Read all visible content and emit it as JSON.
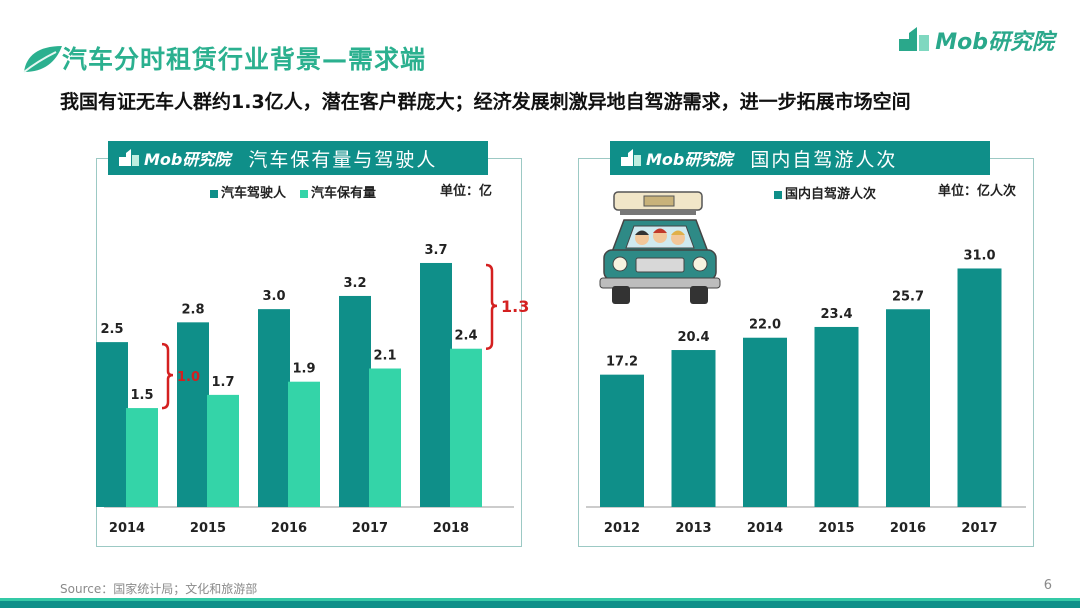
{
  "header": {
    "title": "汽车分时租赁行业背景—需求端",
    "subtitle": "我国有证无车人群约1.3亿人，潜在客户群庞大；经济发展刺激异地自驾游需求，进一步拓展市场空间",
    "brand": "Mob研究院"
  },
  "colors": {
    "dark_teal": "#0f8f89",
    "light_green": "#34d4a8",
    "red": "#d42020",
    "accent": "#2bb08f"
  },
  "chart_data": [
    {
      "type": "bar",
      "title": "汽车保有量与驾驶人",
      "brand": "Mob研究院",
      "unit": "单位：亿",
      "categories": [
        "2014",
        "2015",
        "2016",
        "2017",
        "2018"
      ],
      "series": [
        {
          "name": "汽车驾驶人",
          "values": [
            2.5,
            2.8,
            3.0,
            3.2,
            3.7
          ],
          "labels": [
            "2.5",
            "2.8",
            "3.0",
            "3.2",
            "3.7"
          ]
        },
        {
          "name": "汽车保有量",
          "values": [
            1.5,
            1.7,
            1.9,
            2.1,
            2.4
          ],
          "labels": [
            "1.5",
            "1.7",
            "1.9",
            "2.1",
            "2.4"
          ]
        }
      ],
      "annotations": [
        {
          "category": "2014",
          "text": "1.0"
        },
        {
          "category": "2018",
          "text": "1.3"
        }
      ],
      "ylim": [
        0,
        4.2
      ],
      "grid": false,
      "legend": "top-left"
    },
    {
      "type": "bar",
      "title": "国内自驾游人次",
      "brand": "Mob研究院",
      "unit": "单位：亿人次",
      "categories": [
        "2012",
        "2013",
        "2014",
        "2015",
        "2016",
        "2017"
      ],
      "series": [
        {
          "name": "国内自驾游人次",
          "values": [
            17.2,
            20.4,
            22.0,
            23.4,
            25.7,
            31.0
          ],
          "labels": [
            "17.2",
            "20.4",
            "22.0",
            "23.4",
            "25.7",
            "31.0"
          ]
        }
      ],
      "ylim": [
        0,
        36
      ],
      "grid": false,
      "legend": "top-left"
    }
  ],
  "footer": {
    "source": "Source：国家统计局；文化和旅游部",
    "page": "6"
  }
}
